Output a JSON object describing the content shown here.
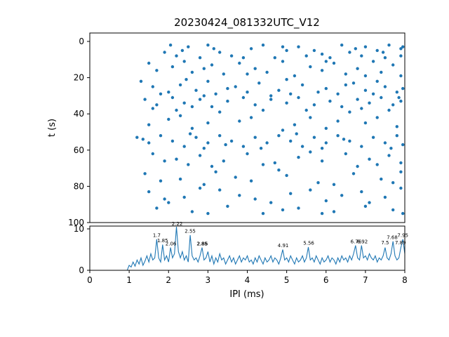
{
  "figure": {
    "background": "#ffffff",
    "accent_color": "#1f77b4"
  },
  "chart_data": [
    {
      "type": "scatter",
      "title": "20230424_081332UTC_V12",
      "xlabel": "IPI (ms)",
      "ylabel": "t (s)",
      "xlim": [
        0,
        8
      ],
      "ylim": [
        100,
        0
      ],
      "xticks": [
        0,
        1,
        2,
        3,
        4,
        5,
        6,
        7,
        8
      ],
      "yticks": [
        0,
        20,
        40,
        60,
        80,
        100
      ],
      "marker_color": "#1f77b4",
      "points": [
        [
          2.5,
          3
        ],
        [
          3.0,
          2
        ],
        [
          3.3,
          6
        ],
        [
          4.1,
          4
        ],
        [
          4.4,
          2
        ],
        [
          5.0,
          5
        ],
        [
          5.3,
          3
        ],
        [
          5.9,
          7
        ],
        [
          6.4,
          2
        ],
        [
          6.6,
          6
        ],
        [
          7.0,
          3
        ],
        [
          7.3,
          5
        ],
        [
          7.6,
          2
        ],
        [
          7.9,
          4
        ],
        [
          2.2,
          8
        ],
        [
          2.8,
          9
        ],
        [
          3.6,
          8
        ],
        [
          4.7,
          9
        ],
        [
          5.5,
          8
        ],
        [
          6.1,
          9
        ],
        [
          6.9,
          8
        ],
        [
          7.5,
          9
        ],
        [
          1.9,
          6
        ],
        [
          7.95,
          3
        ],
        [
          7.9,
          8
        ],
        [
          2.35,
          5
        ],
        [
          3.15,
          4
        ],
        [
          4.9,
          3
        ],
        [
          5.7,
          5
        ],
        [
          6.75,
          4
        ],
        [
          7.45,
          6
        ],
        [
          3.9,
          9
        ],
        [
          2.05,
          2
        ],
        [
          1.5,
          12
        ],
        [
          2.1,
          14
        ],
        [
          2.4,
          11
        ],
        [
          3.1,
          13
        ],
        [
          3.8,
          12
        ],
        [
          4.2,
          15
        ],
        [
          4.9,
          11
        ],
        [
          5.6,
          14
        ],
        [
          6.2,
          12
        ],
        [
          6.8,
          15
        ],
        [
          7.2,
          11
        ],
        [
          7.7,
          13
        ],
        [
          2.6,
          17
        ],
        [
          3.4,
          18
        ],
        [
          4.5,
          17
        ],
        [
          5.2,
          19
        ],
        [
          6.5,
          18
        ],
        [
          7.4,
          17
        ],
        [
          7.9,
          19
        ],
        [
          1.7,
          16
        ],
        [
          2.9,
          15
        ],
        [
          4.0,
          18
        ],
        [
          5.9,
          16
        ],
        [
          7.0,
          19
        ],
        [
          6.0,
          11
        ],
        [
          1.3,
          22
        ],
        [
          1.6,
          25
        ],
        [
          2.0,
          28
        ],
        [
          2.3,
          24
        ],
        [
          2.7,
          27
        ],
        [
          3.0,
          22
        ],
        [
          3.2,
          29
        ],
        [
          3.7,
          25
        ],
        [
          4.0,
          28
        ],
        [
          4.3,
          23
        ],
        [
          4.8,
          27
        ],
        [
          5.1,
          29
        ],
        [
          5.4,
          24
        ],
        [
          5.8,
          28
        ],
        [
          6.0,
          26
        ],
        [
          6.3,
          29
        ],
        [
          6.7,
          23
        ],
        [
          7.0,
          27
        ],
        [
          7.2,
          29
        ],
        [
          7.5,
          25
        ],
        [
          7.8,
          28
        ],
        [
          7.95,
          26
        ],
        [
          2.9,
          30
        ],
        [
          1.8,
          29
        ],
        [
          4.6,
          30
        ],
        [
          3.5,
          26
        ],
        [
          5.0,
          21
        ],
        [
          6.5,
          24
        ],
        [
          7.3,
          22
        ],
        [
          2.45,
          21
        ],
        [
          1.4,
          32
        ],
        [
          1.7,
          35
        ],
        [
          2.1,
          31
        ],
        [
          2.4,
          34
        ],
        [
          2.8,
          32
        ],
        [
          3.1,
          36
        ],
        [
          3.5,
          33
        ],
        [
          3.9,
          31
        ],
        [
          4.2,
          35
        ],
        [
          4.6,
          32
        ],
        [
          5.0,
          34
        ],
        [
          5.3,
          31
        ],
        [
          5.7,
          35
        ],
        [
          6.1,
          33
        ],
        [
          6.4,
          36
        ],
        [
          6.8,
          32
        ],
        [
          7.1,
          34
        ],
        [
          7.4,
          31
        ],
        [
          7.7,
          35
        ],
        [
          7.9,
          33
        ],
        [
          2.2,
          38
        ],
        [
          3.3,
          39
        ],
        [
          5.5,
          38
        ],
        [
          6.6,
          39
        ],
        [
          7.6,
          38
        ],
        [
          1.6,
          37
        ],
        [
          4.4,
          38
        ],
        [
          6.9,
          37
        ],
        [
          2.6,
          36
        ],
        [
          7.85,
          31
        ],
        [
          2.0,
          43
        ],
        [
          3.0,
          45
        ],
        [
          4.1,
          42
        ],
        [
          5.2,
          46
        ],
        [
          6.3,
          44
        ],
        [
          7.3,
          42
        ],
        [
          7.8,
          47
        ],
        [
          2.6,
          48
        ],
        [
          3.8,
          44
        ],
        [
          1.5,
          46
        ],
        [
          4.9,
          49
        ],
        [
          6.0,
          48
        ],
        [
          7.0,
          45
        ],
        [
          2.3,
          41
        ],
        [
          5.6,
          42
        ],
        [
          1.2,
          53
        ],
        [
          1.5,
          56
        ],
        [
          1.8,
          52
        ],
        [
          2.1,
          55
        ],
        [
          2.4,
          58
        ],
        [
          2.7,
          53
        ],
        [
          3.0,
          56
        ],
        [
          3.3,
          52
        ],
        [
          3.6,
          55
        ],
        [
          3.9,
          58
        ],
        [
          4.2,
          53
        ],
        [
          4.5,
          56
        ],
        [
          4.8,
          52
        ],
        [
          5.1,
          55
        ],
        [
          5.4,
          58
        ],
        [
          5.7,
          53
        ],
        [
          6.0,
          56
        ],
        [
          6.3,
          52
        ],
        [
          6.6,
          55
        ],
        [
          6.9,
          58
        ],
        [
          7.2,
          53
        ],
        [
          7.5,
          56
        ],
        [
          7.8,
          52
        ],
        [
          7.95,
          57
        ],
        [
          2.9,
          59
        ],
        [
          5.9,
          59
        ],
        [
          1.35,
          54
        ],
        [
          3.45,
          57
        ],
        [
          4.35,
          59
        ],
        [
          6.45,
          54
        ],
        [
          7.65,
          59
        ],
        [
          2.55,
          51
        ],
        [
          5.25,
          51
        ],
        [
          1.6,
          62
        ],
        [
          2.2,
          65
        ],
        [
          2.8,
          63
        ],
        [
          3.4,
          66
        ],
        [
          4.0,
          62
        ],
        [
          4.7,
          67
        ],
        [
          5.3,
          64
        ],
        [
          5.9,
          66
        ],
        [
          6.5,
          62
        ],
        [
          7.1,
          65
        ],
        [
          7.6,
          63
        ],
        [
          7.9,
          67
        ],
        [
          3.1,
          69
        ],
        [
          4.4,
          68
        ],
        [
          6.8,
          69
        ],
        [
          2.5,
          68
        ],
        [
          5.6,
          61
        ],
        [
          7.3,
          68
        ],
        [
          1.9,
          66
        ],
        [
          1.4,
          73
        ],
        [
          2.3,
          76
        ],
        [
          3.2,
          72
        ],
        [
          4.1,
          77
        ],
        [
          5.0,
          74
        ],
        [
          5.8,
          78
        ],
        [
          6.7,
          73
        ],
        [
          7.4,
          76
        ],
        [
          7.9,
          72
        ],
        [
          2.9,
          79
        ],
        [
          4.8,
          71
        ],
        [
          3.7,
          75
        ],
        [
          6.2,
          79
        ],
        [
          7.7,
          78
        ],
        [
          1.8,
          77
        ],
        [
          1.5,
          83
        ],
        [
          2.4,
          86
        ],
        [
          3.3,
          82
        ],
        [
          4.2,
          87
        ],
        [
          5.1,
          84
        ],
        [
          6.0,
          88
        ],
        [
          6.9,
          83
        ],
        [
          7.5,
          86
        ],
        [
          2.0,
          89
        ],
        [
          3.8,
          85
        ],
        [
          5.6,
          82
        ],
        [
          7.1,
          89
        ],
        [
          2.8,
          81
        ],
        [
          4.6,
          89
        ],
        [
          6.4,
          85
        ],
        [
          7.9,
          81
        ],
        [
          1.9,
          87
        ],
        [
          1.7,
          92
        ],
        [
          2.6,
          94
        ],
        [
          3.5,
          91
        ],
        [
          4.4,
          95
        ],
        [
          5.3,
          92
        ],
        [
          6.2,
          94
        ],
        [
          7.0,
          91
        ],
        [
          7.7,
          93
        ],
        [
          7.95,
          95
        ],
        [
          4.9,
          93
        ],
        [
          3.0,
          95
        ],
        [
          5.9,
          95
        ]
      ]
    },
    {
      "type": "line",
      "xlabel": "IPI (ms)",
      "xlim": [
        0,
        8
      ],
      "ylim": [
        0,
        10.7
      ],
      "yticks": [
        0,
        10
      ],
      "line_color": "#1f77b4",
      "x_start": 0,
      "dx": 0.05,
      "values": [
        0,
        0,
        0,
        0,
        0,
        0,
        0,
        0,
        0,
        0,
        0,
        0,
        0,
        0,
        0,
        0,
        0,
        0,
        0,
        0,
        1.2,
        0.8,
        2,
        1,
        2.5,
        1.5,
        3,
        1.2,
        2.2,
        3.5,
        2,
        4,
        2.5,
        3,
        7.5,
        3,
        2,
        6.2,
        2.5,
        3.5,
        2,
        5.5,
        3,
        4,
        10.5,
        4.5,
        3,
        4.5,
        2.5,
        3.5,
        2,
        8.5,
        3.5,
        2.5,
        3,
        2,
        3.5,
        5.5,
        2.5,
        3,
        4.5,
        2,
        3.5,
        1.5,
        3,
        2,
        4,
        2.5,
        3,
        1.5,
        2.5,
        3.5,
        2,
        3,
        1.5,
        2.5,
        3.5,
        2,
        3,
        2.5,
        3.5,
        2,
        2.5,
        1.5,
        3,
        2,
        3.5,
        2.5,
        1.5,
        3,
        2,
        2.5,
        3.5,
        2,
        3,
        2.5,
        1.5,
        3,
        5,
        2.5,
        3,
        2,
        3.5,
        2.5,
        1.5,
        3,
        2,
        2.5,
        3.5,
        2,
        3,
        5.6,
        2.5,
        3,
        2,
        3.5,
        2.5,
        1.5,
        3,
        2,
        2.5,
        3.5,
        2,
        3,
        2.5,
        1.5,
        3,
        2,
        3.5,
        2.5,
        3,
        2,
        3.5,
        2.5,
        4,
        6,
        3,
        2.5,
        6,
        3,
        3.5,
        2.5,
        4,
        3,
        2.5,
        3.5,
        2,
        3,
        2.5,
        3.5,
        5.5,
        3,
        2.5,
        4,
        7,
        3.5,
        2.5,
        3,
        5.5,
        7.5,
        4
      ],
      "annotations": [
        {
          "x": 1.7,
          "y": 7.8,
          "label": "1.7"
        },
        {
          "x": 1.85,
          "y": 6.5,
          "label": "1.85"
        },
        {
          "x": 2.06,
          "y": 5.8,
          "label": "2.06"
        },
        {
          "x": 2.22,
          "y": 10.7,
          "label": "2.22"
        },
        {
          "x": 2.55,
          "y": 8.8,
          "label": "2.55"
        },
        {
          "x": 2.85,
          "y": 5.8,
          "label": "2.85"
        },
        {
          "x": 2.86,
          "y": 5.8,
          "label": "2.86"
        },
        {
          "x": 4.91,
          "y": 5.3,
          "label": "4.91"
        },
        {
          "x": 5.56,
          "y": 5.9,
          "label": "5.56"
        },
        {
          "x": 6.76,
          "y": 6.3,
          "label": "6.76"
        },
        {
          "x": 6.92,
          "y": 6.3,
          "label": "6.92"
        },
        {
          "x": 7.5,
          "y": 6.0,
          "label": "7.5"
        },
        {
          "x": 7.68,
          "y": 7.3,
          "label": "7.68"
        },
        {
          "x": 7.89,
          "y": 6.0,
          "label": "7.89"
        },
        {
          "x": 7.95,
          "y": 7.8,
          "label": "7.95"
        }
      ]
    }
  ]
}
